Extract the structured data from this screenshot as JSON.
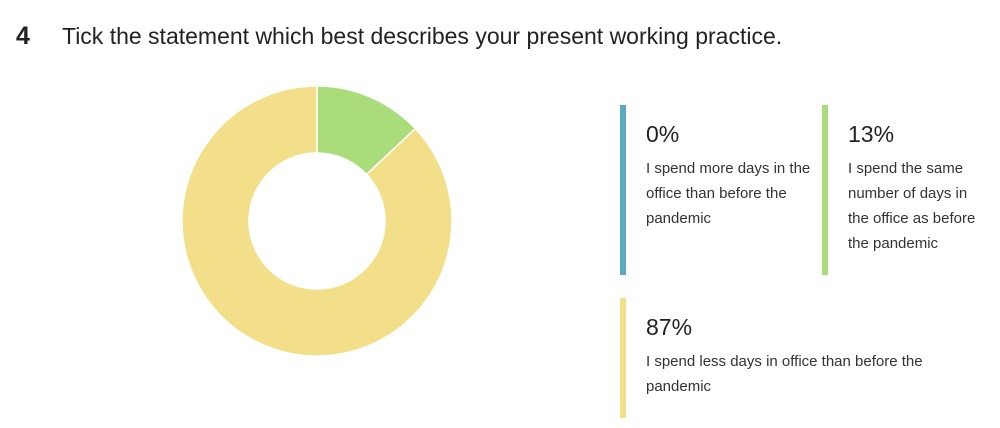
{
  "chart_data": {
    "type": "pie",
    "donut": true,
    "question_number": "4",
    "title": "Tick the statement which best describes your present working practice.",
    "categories": [
      "I spend more days in the office than before the pandemic",
      "I spend the same number of days in the office as before the pandemic",
      "I spend less days in office than before the pandemic"
    ],
    "values": [
      0,
      13,
      87
    ],
    "value_labels": [
      "0%",
      "13%",
      "87%"
    ],
    "colors": [
      "#5aabc2",
      "#aadc7a",
      "#f3df89"
    ]
  }
}
